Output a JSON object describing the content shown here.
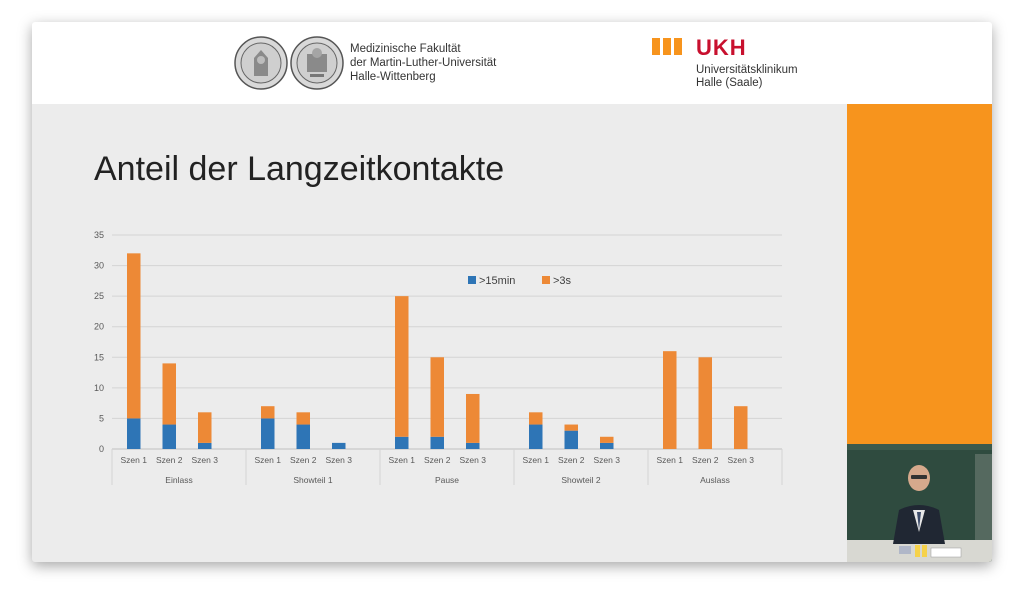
{
  "header": {
    "faculty_lines": [
      "Medizinische Fakultät",
      "der Martin-Luther-Universität",
      "Halle-Wittenberg"
    ],
    "ukh_logo": "UKH",
    "ukh_lines": [
      "Universitätsklinikum",
      "Halle (Saale)"
    ]
  },
  "slide": {
    "title": "Anteil der Langzeitkontakte"
  },
  "colors": {
    "series_15min": "#2e75b6",
    "series_3s": "#ed8936",
    "accent_orange": "#f7941d",
    "ukh_red": "#c8102e"
  },
  "chart_data": {
    "type": "bar",
    "stacked": true,
    "title": "",
    "xlabel": "",
    "ylabel": "",
    "ylim": [
      0,
      35
    ],
    "yticks": [
      0,
      5,
      10,
      15,
      20,
      25,
      30,
      35
    ],
    "groups": [
      "Einlass",
      "Showteil 1",
      "Pause",
      "Showteil 2",
      "Auslass"
    ],
    "subcategories": [
      "Szen 1",
      "Szen 2",
      "Szen 3"
    ],
    "categories": [
      "Szen 1",
      "Szen 2",
      "Szen 3",
      "Szen 1",
      "Szen 2",
      "Szen 3",
      "Szen 1",
      "Szen 2",
      "Szen 3",
      "Szen 1",
      "Szen 2",
      "Szen 3",
      "Szen 1",
      "Szen 2",
      "Szen 3"
    ],
    "series": [
      {
        "name": ">15min",
        "values": [
          5,
          4,
          1,
          5,
          4,
          1,
          2,
          2,
          1,
          4,
          3,
          1,
          0,
          0,
          0
        ]
      },
      {
        "name": ">3s",
        "values": [
          27,
          10,
          5,
          2,
          2,
          0,
          23,
          13,
          8,
          2,
          1,
          1,
          16,
          15,
          7
        ]
      }
    ],
    "legend": ">15min and >3s, top-center"
  }
}
